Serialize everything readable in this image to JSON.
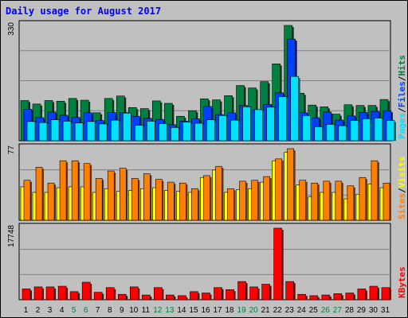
{
  "title": "Daily usage for August 2017",
  "colors": {
    "hits": "#008040",
    "files": "#0040ff",
    "pages": "#00e0ff",
    "visits": "#ff8000",
    "sites": "#ffff00",
    "kbytes": "#ff0000",
    "weekend_day": "#008040",
    "weekday": "#000000",
    "title": "#0000ff"
  },
  "chart_data": [
    {
      "type": "bar",
      "panel": "hits-files-pages",
      "categories": [
        "1",
        "2",
        "3",
        "4",
        "5",
        "6",
        "7",
        "8",
        "9",
        "10",
        "11",
        "12",
        "13",
        "14",
        "15",
        "16",
        "17",
        "18",
        "19",
        "20",
        "21",
        "22",
        "23",
        "24",
        "25",
        "26",
        "27",
        "28",
        "29",
        "30",
        "31"
      ],
      "weekend_days": [
        "5",
        "6",
        "12",
        "13",
        "19",
        "20",
        "26",
        "27"
      ],
      "ymax_label": "330",
      "ylim": [
        0,
        330
      ],
      "legend": [
        "Pages",
        "Files",
        "Hits"
      ],
      "series": [
        {
          "name": "Hits",
          "values": [
            115,
            105,
            115,
            113,
            121,
            116,
            80,
            121,
            128,
            95,
            92,
            114,
            107,
            70,
            86,
            120,
            117,
            129,
            158,
            151,
            169,
            220,
            330,
            136,
            102,
            97,
            76,
            103,
            101,
            101,
            118
          ]
        },
        {
          "name": "Files",
          "values": [
            90,
            66,
            82,
            73,
            67,
            80,
            58,
            81,
            81,
            70,
            64,
            61,
            46,
            56,
            63,
            98,
            75,
            80,
            101,
            89,
            104,
            137,
            291,
            80,
            66,
            82,
            59,
            71,
            81,
            84,
            86
          ]
        },
        {
          "name": "Pages",
          "values": [
            55,
            52,
            60,
            56,
            51,
            55,
            48,
            59,
            79,
            44,
            56,
            49,
            38,
            53,
            50,
            60,
            72,
            59,
            97,
            89,
            96,
            126,
            184,
            72,
            40,
            47,
            43,
            58,
            63,
            65,
            58
          ]
        }
      ]
    },
    {
      "type": "bar",
      "panel": "visits-sites",
      "categories": [
        "1",
        "2",
        "3",
        "4",
        "5",
        "6",
        "7",
        "8",
        "9",
        "10",
        "11",
        "12",
        "13",
        "14",
        "15",
        "16",
        "17",
        "18",
        "19",
        "20",
        "21",
        "22",
        "23",
        "24",
        "25",
        "26",
        "27",
        "28",
        "29",
        "30",
        "31"
      ],
      "ymax_label": "77",
      "ylim": [
        0,
        77
      ],
      "legend": [
        "Sites",
        "Visits"
      ],
      "series": [
        {
          "name": "Visits",
          "values": [
            43,
            57,
            40,
            64,
            64,
            61,
            45,
            53,
            56,
            45,
            50,
            44,
            41,
            40,
            34,
            48,
            58,
            34,
            42,
            43,
            47,
            66,
            77,
            43,
            40,
            42,
            42,
            37,
            46,
            64,
            40
          ]
        },
        {
          "name": "Sites",
          "values": [
            36,
            30,
            30,
            35,
            36,
            36,
            30,
            34,
            31,
            32,
            34,
            35,
            32,
            31,
            30,
            46,
            54,
            30,
            33,
            34,
            41,
            64,
            73,
            38,
            25,
            30,
            30,
            23,
            28,
            39,
            35
          ]
        }
      ]
    },
    {
      "type": "bar",
      "panel": "kbytes",
      "categories": [
        "1",
        "2",
        "3",
        "4",
        "5",
        "6",
        "7",
        "8",
        "9",
        "10",
        "11",
        "12",
        "13",
        "14",
        "15",
        "16",
        "17",
        "18",
        "19",
        "20",
        "21",
        "22",
        "23",
        "24",
        "25",
        "26",
        "27",
        "28",
        "29",
        "30",
        "31"
      ],
      "ymax_label": "17748",
      "ylim": [
        0,
        17748
      ],
      "legend": [
        "KBytes"
      ],
      "series": [
        {
          "name": "KBytes",
          "values": [
            2676,
            3175,
            3175,
            3343,
            2007,
            4345,
            1840,
            3008,
            1340,
            3175,
            1170,
            3008,
            1170,
            1000,
            2007,
            1670,
            3008,
            2507,
            4512,
            3175,
            3843,
            17748,
            4512,
            1340,
            1000,
            1170,
            1500,
            1670,
            2676,
            3343,
            3008
          ]
        }
      ]
    }
  ]
}
